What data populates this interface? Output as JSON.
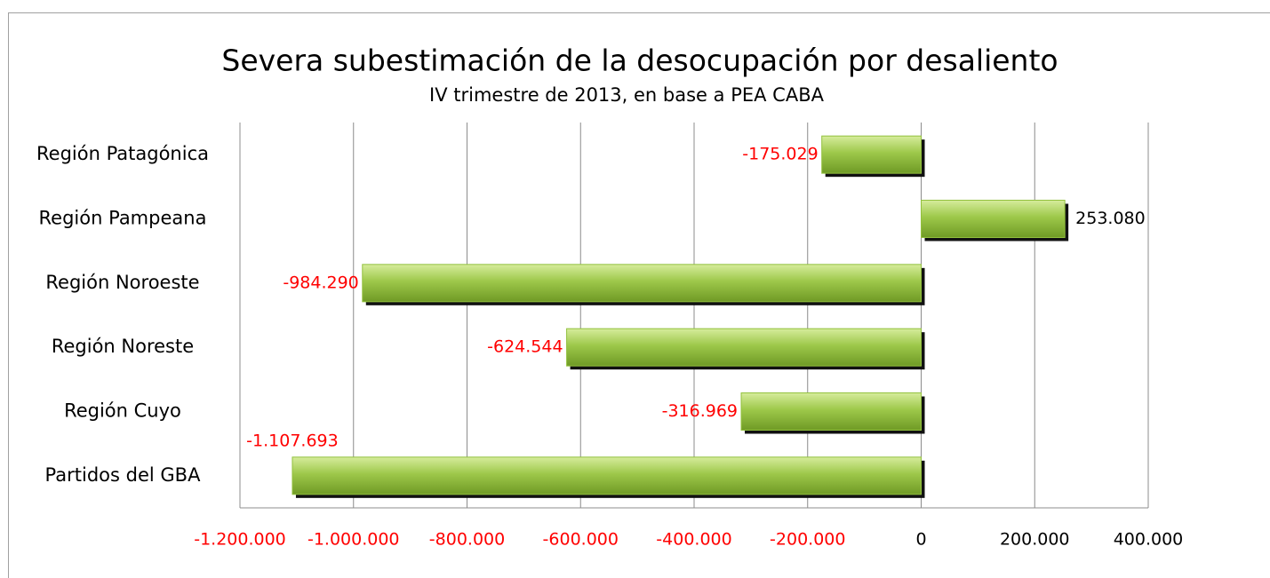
{
  "chart_data": {
    "type": "bar",
    "orientation": "horizontal",
    "title": "Severa subestimación de la desocupación por desaliento",
    "subtitle": "IV trimestre de 2013, en base a PEA CABA",
    "categories": [
      "Región Patagónica",
      "Región Pampeana",
      "Región Noroeste",
      "Región Noreste",
      "Región Cuyo",
      "Partidos del GBA"
    ],
    "values": [
      -175029,
      253080,
      -984290,
      -624544,
      -316969,
      -1107693
    ],
    "value_labels": [
      "-175.029",
      "253.080",
      "-984.290",
      "-624.544",
      "-316.969",
      "-1.107.693"
    ],
    "color": "#93c13e",
    "negative_label_color": "#ff0000",
    "label_color": "#000000",
    "xlim": [
      -1200000,
      400000
    ],
    "xticks": [
      {
        "value": -1200000,
        "label": "-1.200.000"
      },
      {
        "value": -1000000,
        "label": "-1.000.000"
      },
      {
        "value": -800000,
        "label": "-800.000"
      },
      {
        "value": -600000,
        "label": "-600.000"
      },
      {
        "value": -400000,
        "label": "-400.000"
      },
      {
        "value": -200000,
        "label": "-200.000"
      },
      0,
      {
        "value": 200000,
        "label": "200.000"
      },
      {
        "value": 400000,
        "label": "400.000"
      }
    ],
    "grid": true
  }
}
